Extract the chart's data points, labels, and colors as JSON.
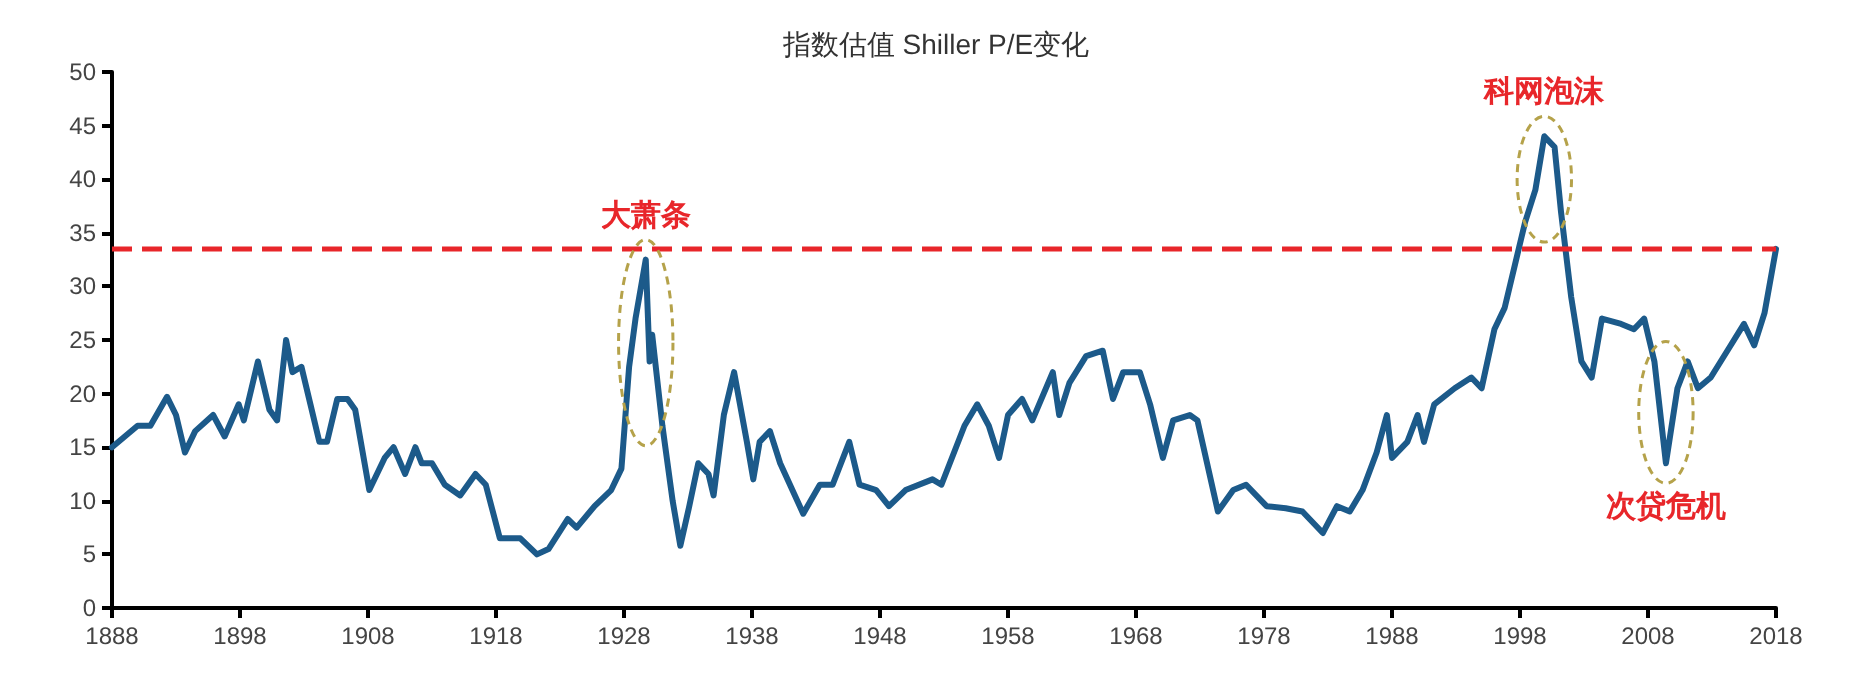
{
  "chart_data": {
    "type": "line",
    "title": "指数估值 Shiller P/E变化",
    "x": [
      1888,
      1889,
      1890,
      1891,
      1892.3,
      1893,
      1893.7,
      1894.5,
      1895.9,
      1896.8,
      1897.9,
      1898.3,
      1899.4,
      1900.3,
      1900.9,
      1901.6,
      1902.1,
      1902.8,
      1903.5,
      1904.2,
      1904.8,
      1905.6,
      1906.4,
      1907,
      1908.1,
      1909.3,
      1910,
      1910.9,
      1911.7,
      1912.2,
      1913,
      1914,
      1915.2,
      1916.4,
      1917.2,
      1918.3,
      1919.9,
      1921.2,
      1922.1,
      1923.6,
      1924.3,
      1925.7,
      1927,
      1927.8,
      1928.4,
      1928.9,
      1929.7,
      1930,
      1930.2,
      1931,
      1931.8,
      1932.4,
      1933.1,
      1933.8,
      1934.6,
      1935,
      1935.8,
      1936.6,
      1937.6,
      1938.1,
      1938.6,
      1939.4,
      1940.2,
      1942,
      1943.3,
      1944.3,
      1945.6,
      1946.4,
      1947.7,
      1948.7,
      1950,
      1952.1,
      1952.8,
      1954.6,
      1955.6,
      1956.5,
      1957.3,
      1958,
      1959.1,
      1959.9,
      1961.5,
      1962,
      1962.8,
      1964.1,
      1965.4,
      1966.2,
      1967,
      1968.3,
      1969.1,
      1970.1,
      1970.9,
      1972.2,
      1972.8,
      1974.4,
      1975.6,
      1976.6,
      1978.2,
      1979.7,
      1981,
      1982.6,
      1983.7,
      1984.7,
      1985.7,
      1986.8,
      1987.6,
      1988,
      1989.2,
      1990,
      1990.5,
      1991.3,
      1992.9,
      1994.2,
      1995,
      1996,
      1996.8,
      1997.6,
      1998.4,
      1999.2,
      1999.9,
      2000.7,
      2001.2,
      2002,
      2002.8,
      2003.6,
      2004.4,
      2005.9,
      2006.9,
      2007.7,
      2008.5,
      2009.4,
      2010.3,
      2011.1,
      2011.9,
      2012.9,
      2014.2,
      2015.5,
      2016.3,
      2017.1,
      2018
    ],
    "series": [
      {
        "color": "#1c5a8a",
        "values": [
          15,
          16,
          17,
          17,
          19.7,
          18,
          14.5,
          16.5,
          18,
          16,
          19,
          17.5,
          23,
          18.5,
          17.5,
          25,
          22,
          22.5,
          19,
          15.5,
          15.5,
          19.5,
          19.5,
          18.5,
          11,
          14,
          15,
          12.5,
          15,
          13.5,
          13.5,
          11.5,
          10.5,
          12.5,
          11.5,
          6.5,
          6.5,
          5,
          5.5,
          8.3,
          7.5,
          9.5,
          11,
          13,
          22.5,
          27,
          32.5,
          23,
          25.5,
          17,
          10,
          5.8,
          9.5,
          13.5,
          12.5,
          10.5,
          18,
          22,
          15.5,
          12,
          15.5,
          16.5,
          13.5,
          8.8,
          11.5,
          11.5,
          15.5,
          11.5,
          11,
          9.5,
          11,
          12,
          11.5,
          17,
          19,
          17,
          14,
          18,
          19.5,
          17.5,
          22,
          18,
          21,
          23.5,
          24,
          19.5,
          22,
          22,
          19,
          14,
          17.5,
          18,
          17.5,
          9,
          11,
          11.5,
          9.5,
          9.3,
          9,
          7,
          9.5,
          9,
          11,
          14.5,
          18,
          14,
          15.5,
          18,
          15.5,
          19,
          20.5,
          21.5,
          20.5,
          26,
          28,
          32,
          36,
          39,
          44,
          43,
          37,
          29,
          23,
          21.5,
          27,
          26.5,
          26,
          27,
          23,
          13.5,
          20.5,
          23,
          20.5,
          21.5,
          24,
          26.5,
          24.5,
          27.5,
          33.5
        ]
      }
    ],
    "xlim": [
      1888,
      2018
    ],
    "xticks": [
      1888,
      1898,
      1908,
      1918,
      1928,
      1938,
      1948,
      1958,
      1968,
      1978,
      1988,
      1998,
      2008,
      2018
    ],
    "ylim": [
      0,
      50
    ],
    "yticks": [
      0,
      5,
      10,
      15,
      20,
      25,
      30,
      35,
      40,
      45,
      50
    ],
    "grid": false,
    "marker": "none",
    "line_style": "solid",
    "ref_lines": [
      {
        "axis": "y",
        "value": 33.5,
        "color": "#e8262a",
        "line_style": "dashed"
      }
    ],
    "annotations": [
      {
        "text": "大萧条",
        "x": 1929.7,
        "y": 32.5
      },
      {
        "text": "科网泡沫",
        "x": 1999.9,
        "y": 44
      },
      {
        "text": "次贷危机",
        "x": 2009.4,
        "y": 13.5
      }
    ]
  }
}
